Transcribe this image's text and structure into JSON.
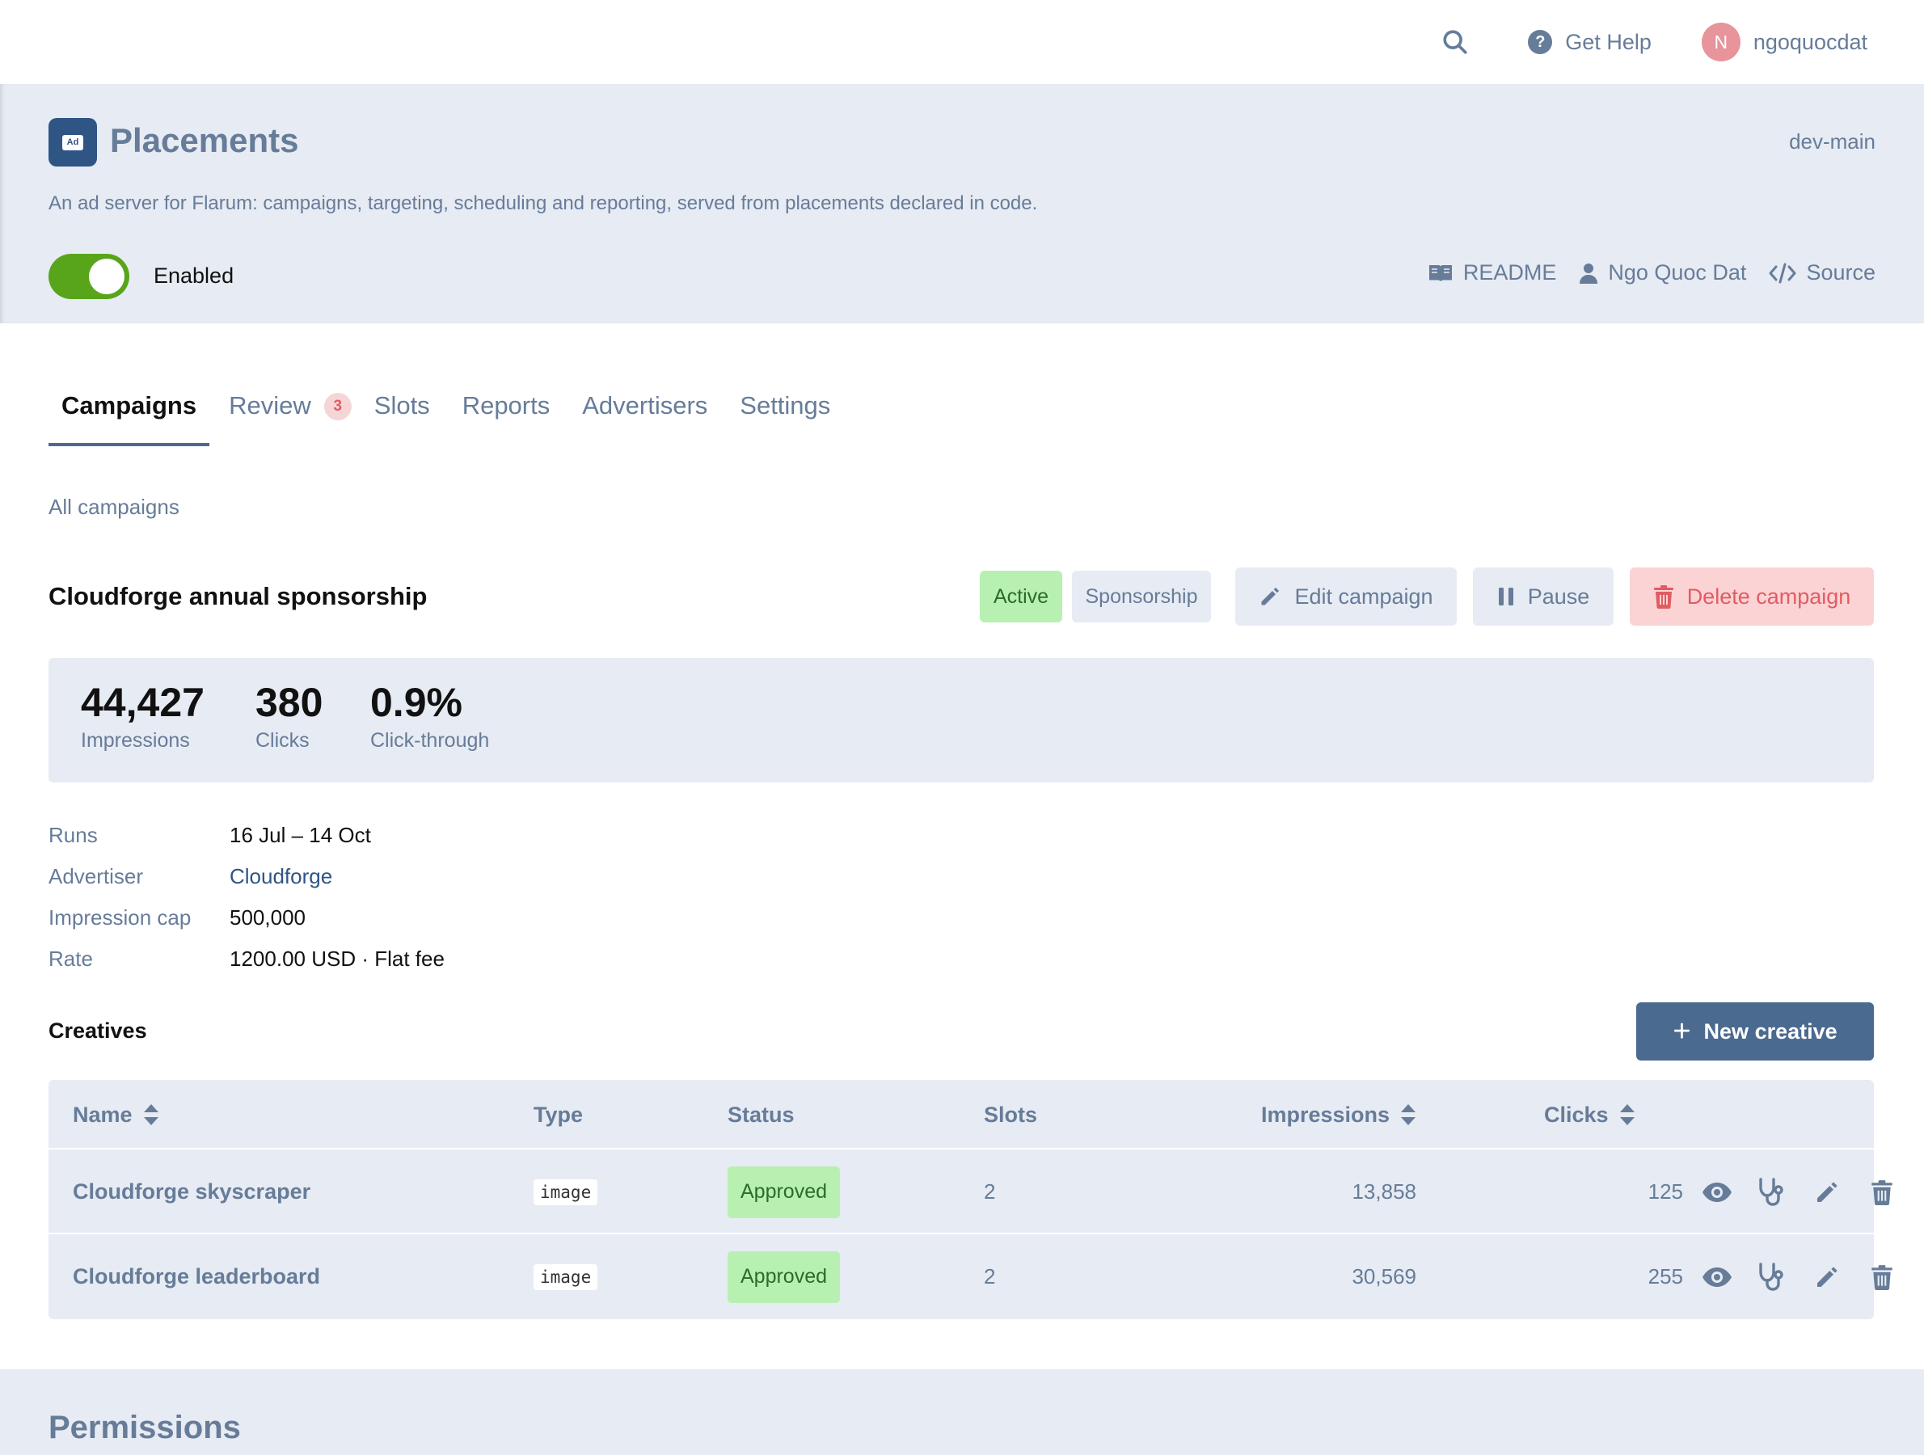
{
  "topbar": {
    "help_label": "Get Help",
    "username": "ngoquocdat",
    "avatar_initial": "N"
  },
  "extension": {
    "icon_text": "Ad",
    "title": "Placements",
    "version": "dev-main",
    "description": "An ad server for Flarum: campaigns, targeting, scheduling and reporting, served from placements declared in code.",
    "enabled_label": "Enabled",
    "enabled": true,
    "links": {
      "readme": "README",
      "author": "Ngo Quoc Dat",
      "source": "Source"
    }
  },
  "tabs": [
    {
      "label": "Campaigns",
      "active": true
    },
    {
      "label": "Review",
      "badge": "3"
    },
    {
      "label": "Slots"
    },
    {
      "label": "Reports"
    },
    {
      "label": "Advertisers"
    },
    {
      "label": "Settings"
    }
  ],
  "breadcrumb": "All campaigns",
  "campaign": {
    "title": "Cloudforge annual sponsorship",
    "status_chip": "Active",
    "type_chip": "Sponsorship",
    "edit_label": "Edit campaign",
    "pause_label": "Pause",
    "delete_label": "Delete campaign",
    "stats": [
      {
        "value": "44,427",
        "label": "Impressions"
      },
      {
        "value": "380",
        "label": "Clicks"
      },
      {
        "value": "0.9%",
        "label": "Click-through"
      }
    ],
    "details": [
      {
        "key": "Runs",
        "value": "16 Jul – 14 Oct"
      },
      {
        "key": "Advertiser",
        "value": "Cloudforge",
        "link": true
      },
      {
        "key": "Impression cap",
        "value": "500,000"
      },
      {
        "key": "Rate",
        "value": "1200.00 USD · Flat fee"
      }
    ]
  },
  "creatives": {
    "title": "Creatives",
    "new_label": "New creative",
    "columns": [
      "Name",
      "Type",
      "Status",
      "Slots",
      "Impressions",
      "Clicks"
    ],
    "rows": [
      {
        "name": "Cloudforge skyscraper",
        "type": "image",
        "status": "Approved",
        "slots": "2",
        "impressions": "13,858",
        "clicks": "125"
      },
      {
        "name": "Cloudforge leaderboard",
        "type": "image",
        "status": "Approved",
        "slots": "2",
        "impressions": "30,569",
        "clicks": "255"
      }
    ]
  },
  "permissions_title": "Permissions",
  "colors": {
    "accent": "#4b6a8f",
    "toggle_on": "#58a51b",
    "muted_text": "#667c99",
    "panel_bg": "#e7ebf3",
    "approved_bg": "#b8f0b2",
    "danger_bg": "#fcd3d5",
    "danger_text": "#e05c63"
  },
  "icons": {
    "search": "search-icon",
    "help": "help-circle-icon",
    "readme": "book-icon",
    "author": "user-icon",
    "source": "code-icon",
    "edit": "pencil-icon",
    "pause": "pause-icon",
    "delete": "trash-icon",
    "sort": "sort-icon",
    "view": "eye-icon",
    "diagnose": "stethoscope-icon"
  }
}
